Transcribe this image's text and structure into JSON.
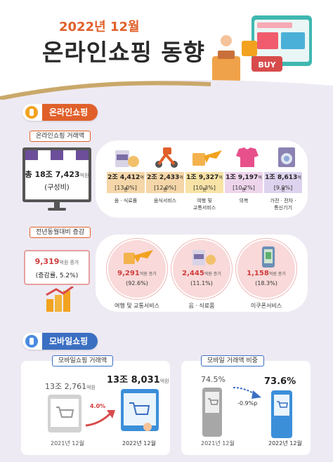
{
  "header": {
    "subtitle": "2022년 12월",
    "title": "온라인쇼핑 동향",
    "illustration_sign": "BUY"
  },
  "online": {
    "section_label": "온라인쇼핑",
    "volume_tag": "온라인쇼핑 거래액",
    "total_prefix": "총 ",
    "total_value": "18조 7,423",
    "total_unit": "억원",
    "total_note": "(구성비)",
    "categories": [
      {
        "value": "2조 4,412",
        "unit": "억원",
        "pct": "[13.0%]",
        "label1": "음 · 식료품",
        "label2": "",
        "color": "#f5d6a8"
      },
      {
        "value": "2조 2,433",
        "unit": "억원",
        "pct": "[12.0%]",
        "label1": "음식서비스",
        "label2": "",
        "color": "#f5d6a8"
      },
      {
        "value": "1조 9,327",
        "unit": "억원",
        "pct": "[10.3%]",
        "label1": "여행 및",
        "label2": "교통서비스",
        "color": "#f8e3a6"
      },
      {
        "value": "1조 9,197",
        "unit": "억원",
        "pct": "[10.2%]",
        "label1": "의복",
        "label2": "",
        "color": "#eed5ec"
      },
      {
        "value": "1조 8,613",
        "unit": "억원",
        "pct": "[9.9%]",
        "label1": "가전 · 전자 ·",
        "label2": "통신기기",
        "color": "#ded3ee"
      }
    ],
    "yoy_tag": "전년동월대비 증감",
    "yoy_value": "9,319",
    "yoy_unit": "억원 증가",
    "yoy_rate": "(증감률, 5.2%)",
    "increases": [
      {
        "value": "9,291",
        "unit": "억원 증가",
        "pct": "(92.6%)",
        "label": "여행 및 교통서비스"
      },
      {
        "value": "2,445",
        "unit": "억원 증가",
        "pct": "(11.1%)",
        "label": "음 · 식료품"
      },
      {
        "value": "1,158",
        "unit": "억원 증가",
        "pct": "(18.3%)",
        "label": "이쿠폰서비스"
      }
    ]
  },
  "mobile": {
    "section_label": "모바일쇼핑",
    "volume_tag": "모바일쇼핑 거래액",
    "prev_value": "13조 2,761",
    "prev_unit": "억원",
    "curr_value": "13조 8,031",
    "curr_unit": "억원",
    "growth": "4.0%",
    "prev_period": "2021년 12월",
    "curr_period": "2022년 12월",
    "share_tag": "모바일 거래액 비중",
    "prev_share": "74.5%",
    "curr_share": "73.6%",
    "share_change": "-0.9%p",
    "share_prev_period": "2021년 12월",
    "share_curr_period": "2022년 12월"
  }
}
